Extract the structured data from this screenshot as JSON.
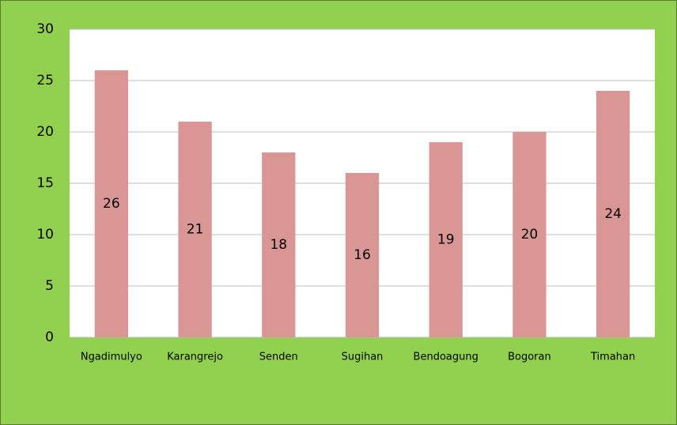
{
  "chart_data": {
    "type": "bar",
    "categories": [
      "Ngadimulyo",
      "Karangrejo",
      "Senden",
      "Sugihan",
      "Bendoagung",
      "Bogoran",
      "Timahan"
    ],
    "values": [
      26,
      21,
      18,
      16,
      19,
      20,
      24
    ],
    "color": "#d99694",
    "ylim": [
      0,
      30
    ],
    "yticks": [
      0,
      5,
      10,
      15,
      20,
      25,
      30
    ],
    "grid": true
  }
}
